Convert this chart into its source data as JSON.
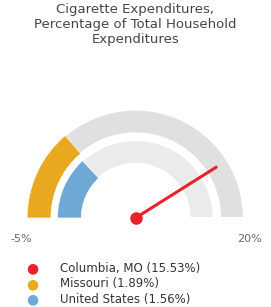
{
  "title": "Cigarette Expenditures,\nPercentage of Total Household\nExpenditures",
  "title_fontsize": 9.5,
  "min_val": -5,
  "max_val": 20,
  "columbia_val": 15.53,
  "missouri_val": 1.89,
  "us_val": 1.56,
  "columbia_color": "#e8212a",
  "missouri_color": "#e8a820",
  "us_color": "#6fa8d4",
  "bg_color": "#e0e0e0",
  "bg_inner_color": "#ebebeb",
  "legend_labels": [
    "Columbia, MO (15.53%)",
    "Missouri (1.89%)",
    "United States (1.56%)"
  ],
  "legend_colors": [
    "#e8212a",
    "#e8a820",
    "#6fa8d4"
  ],
  "tick_labels": [
    "-5%",
    "20%"
  ],
  "tick_fontsize": 8,
  "legend_fontsize": 8.5,
  "outer_r": 1.0,
  "band1_outer": 1.0,
  "band1_inner": 0.78,
  "band2_outer": 0.72,
  "band2_inner": 0.5
}
